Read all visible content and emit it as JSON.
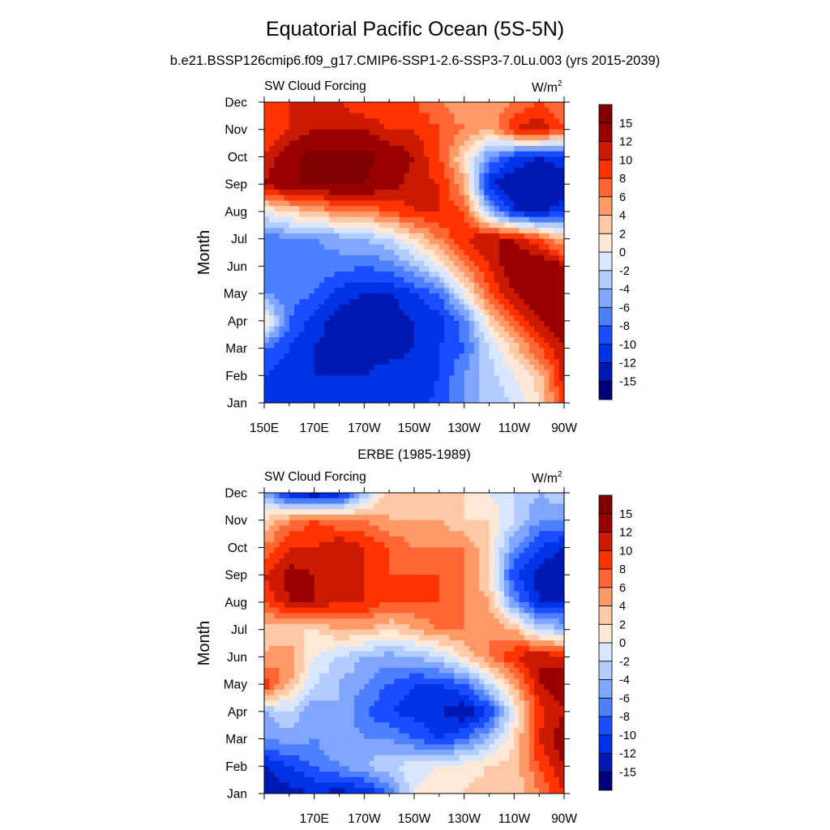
{
  "title": "Equatorial Pacific Ocean (5S-5N)",
  "subtitle": "b.e21.BSSP126cmip6.f09_g17.CMIP6-SSP1-2.6-SSP3-7.0Lu.003 (yrs 2015-2039)",
  "colors": [
    "#00007f",
    "#0019b2",
    "#0033e6",
    "#1a4dff",
    "#4d80ff",
    "#80a6ff",
    "#b3ccff",
    "#d9e6ff",
    "#ffe8d6",
    "#ffc8a6",
    "#ff9966",
    "#ff6633",
    "#ff3300",
    "#cc1a00",
    "#990000",
    "#800000"
  ],
  "chart_data": [
    {
      "type": "heatmap",
      "panel_title": "",
      "left_label": "SW Cloud Forcing",
      "units_base": "W/m",
      "units_sup": "2",
      "ylabel": "Month",
      "months": [
        "Jan",
        "Feb",
        "Mar",
        "Apr",
        "May",
        "Jun",
        "Jul",
        "Aug",
        "Sep",
        "Oct",
        "Nov",
        "Dec"
      ],
      "x_ticks": [
        {
          "lon": 150,
          "label": "150E"
        },
        {
          "lon": 170,
          "label": "170E"
        },
        {
          "lon": 190,
          "label": "170W"
        },
        {
          "lon": 210,
          "label": "150W"
        },
        {
          "lon": 230,
          "label": "130W"
        },
        {
          "lon": 250,
          "label": "110W"
        },
        {
          "lon": 270,
          "label": "90W"
        }
      ],
      "xlim": [
        150,
        270
      ],
      "levels": [
        -15,
        -12,
        -10,
        -8,
        -6,
        -4,
        -2,
        0,
        2,
        4,
        6,
        8,
        10,
        12,
        15
      ],
      "level_labels": [
        "-15",
        "-12",
        "-10",
        "-8",
        "-6",
        "-4",
        "-2",
        "0",
        "2",
        "4",
        "6",
        "8",
        "10",
        "12",
        "15"
      ],
      "lon": [
        150,
        160,
        170,
        180,
        190,
        200,
        210,
        220,
        230,
        240,
        250,
        260,
        270
      ],
      "values": [
        [
          -12,
          -12,
          -12,
          -12,
          -12,
          -12,
          -12,
          -9,
          -6,
          -3,
          -2,
          2,
          9
        ],
        [
          -10,
          -11,
          -12,
          -12,
          -12,
          -11,
          -11,
          -10,
          -6,
          -3,
          0,
          3,
          11
        ],
        [
          -8,
          -10,
          -12,
          -13,
          -13,
          -13,
          -12,
          -10,
          -8,
          -2,
          3,
          8,
          12
        ],
        [
          2,
          -8,
          -11,
          -13,
          -15,
          -14,
          -12,
          -11,
          -7,
          2,
          8,
          12,
          14
        ],
        [
          -6,
          -7,
          -8,
          -11,
          -12,
          -12,
          -10,
          -8,
          0,
          8,
          12,
          14,
          14
        ],
        [
          -7,
          -6,
          -7,
          -7,
          -8,
          -7,
          -4,
          0,
          6,
          10,
          14,
          15,
          12
        ],
        [
          -8,
          -6,
          -6,
          -5,
          -4,
          -2,
          2,
          6,
          10,
          12,
          12,
          8,
          3
        ],
        [
          0,
          2,
          4,
          6,
          6,
          8,
          10,
          10,
          8,
          -4,
          -12,
          -13,
          -10
        ],
        [
          12,
          15,
          15,
          15,
          15,
          13,
          11,
          10,
          4,
          -12,
          -14,
          -15,
          -15
        ],
        [
          10,
          14,
          16,
          16,
          16,
          14,
          12,
          8,
          2,
          -6,
          -10,
          -12,
          -10
        ],
        [
          8,
          10,
          12,
          12,
          12,
          10,
          10,
          8,
          6,
          4,
          10,
          12,
          8
        ],
        [
          8,
          10,
          10,
          10,
          8,
          8,
          8,
          6,
          4,
          4,
          6,
          8,
          6
        ]
      ]
    },
    {
      "type": "heatmap",
      "panel_title": "ERBE (1985-1989)",
      "left_label": "SW Cloud Forcing",
      "units_base": "W/m",
      "units_sup": "2",
      "ylabel": "Month",
      "months": [
        "Jan",
        "Feb",
        "Mar",
        "Apr",
        "May",
        "Jun",
        "Jul",
        "Aug",
        "Sep",
        "Oct",
        "Nov",
        "Dec"
      ],
      "x_ticks": [
        {
          "lon": 170,
          "label": "170E"
        },
        {
          "lon": 190,
          "label": "170W"
        },
        {
          "lon": 210,
          "label": "150W"
        },
        {
          "lon": 230,
          "label": "130W"
        },
        {
          "lon": 250,
          "label": "110W"
        },
        {
          "lon": 270,
          "label": "90W"
        }
      ],
      "xlim": [
        150,
        270
      ],
      "levels": [
        -15,
        -12,
        -10,
        -8,
        -6,
        -4,
        -2,
        0,
        2,
        4,
        6,
        8,
        10,
        12,
        15
      ],
      "level_labels": [
        "-15",
        "-12",
        "-10",
        "-8",
        "-6",
        "-4",
        "-2",
        "0",
        "2",
        "4",
        "6",
        "8",
        "10",
        "12",
        "15"
      ],
      "lon": [
        150,
        160,
        170,
        180,
        190,
        200,
        210,
        220,
        230,
        240,
        250,
        260,
        270
      ],
      "values": [
        [
          -14,
          -13,
          -12,
          -13,
          -12,
          -8,
          0,
          2,
          2,
          3,
          2,
          6,
          10
        ],
        [
          -12,
          -10,
          -8,
          -6,
          -4,
          -2,
          -1,
          0,
          1,
          2,
          3,
          8,
          12
        ],
        [
          -6,
          -5,
          -6,
          -4,
          -6,
          -6,
          -8,
          -10,
          -8,
          -4,
          2,
          10,
          14
        ],
        [
          -4,
          -2,
          -6,
          -4,
          -8,
          -10,
          -11,
          -12,
          -14,
          -10,
          0,
          9,
          12
        ],
        [
          10,
          4,
          -2,
          -4,
          -6,
          -8,
          -10,
          -10,
          -8,
          -2,
          4,
          12,
          14
        ],
        [
          4,
          6,
          0,
          -2,
          -4,
          -5,
          -4,
          -2,
          2,
          6,
          10,
          12,
          10
        ],
        [
          3,
          2,
          2,
          4,
          4,
          2,
          4,
          6,
          6,
          6,
          4,
          -2,
          -4
        ],
        [
          8,
          12,
          12,
          10,
          10,
          8,
          8,
          8,
          6,
          4,
          -6,
          -12,
          -12
        ],
        [
          10,
          13,
          12,
          12,
          10,
          8,
          8,
          8,
          6,
          2,
          -10,
          -13,
          -15
        ],
        [
          6,
          10,
          10,
          12,
          10,
          8,
          6,
          6,
          6,
          2,
          -6,
          -10,
          -12
        ],
        [
          2,
          6,
          8,
          6,
          6,
          4,
          4,
          4,
          2,
          2,
          -2,
          -6,
          -6
        ],
        [
          -4,
          -12,
          -15,
          -12,
          -4,
          4,
          2,
          2,
          2,
          0,
          -2,
          -4,
          -2
        ]
      ]
    }
  ]
}
